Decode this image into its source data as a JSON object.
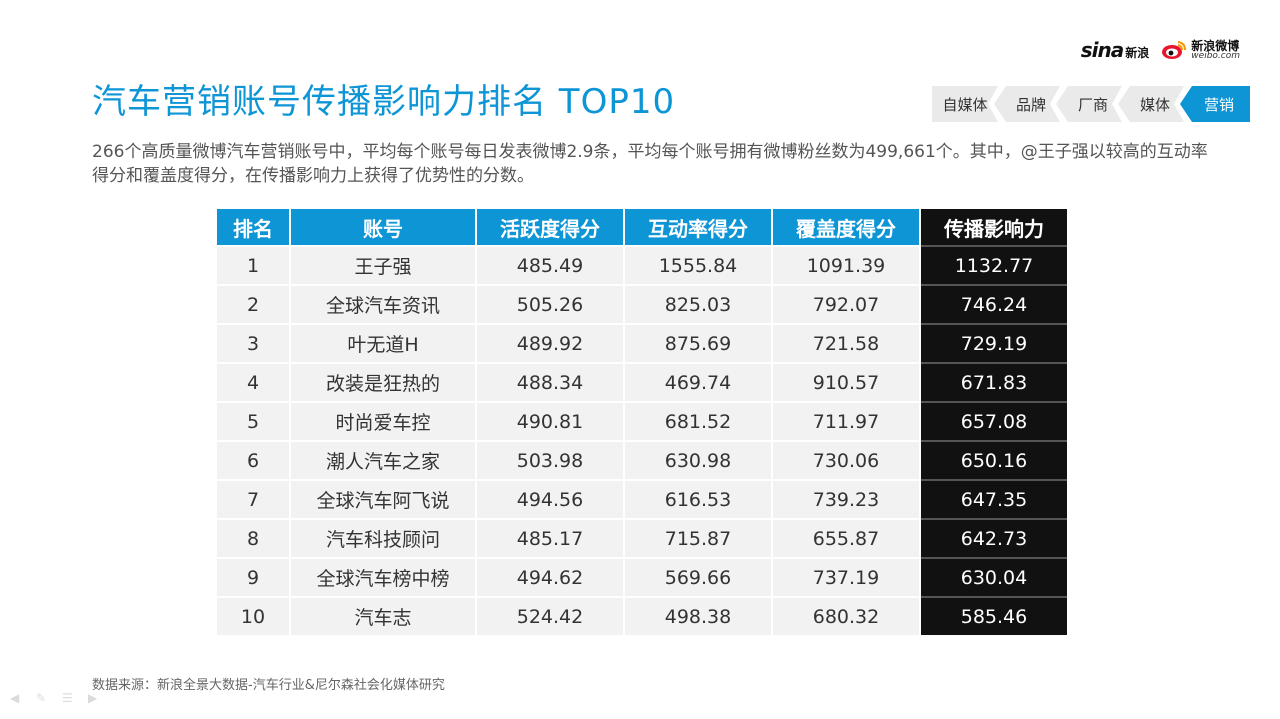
{
  "header": {
    "sina_logo_text": "sina",
    "sina_logo_cn": "新浪",
    "weibo_logo_cn": "新浪微博",
    "weibo_logo_en": "weibo.com",
    "title": "汽车营销账号传播影响力排名 TOP10"
  },
  "tabs": [
    {
      "label": "自媒体",
      "active": false
    },
    {
      "label": "品牌",
      "active": false
    },
    {
      "label": "厂商",
      "active": false
    },
    {
      "label": "媒体",
      "active": false
    },
    {
      "label": "营销",
      "active": true
    }
  ],
  "intro": "266个高质量微博汽车营销账号中，平均每个账号每日发表微博2.9条，平均每个账号拥有微博粉丝数为499,661个。其中，@王子强以较高的互动率得分和覆盖度得分，在传播影响力上获得了优势性的分数。",
  "table": {
    "headers": [
      "排名",
      "账号",
      "活跃度得分",
      "互动率得分",
      "覆盖度得分",
      "传播影响力"
    ],
    "rows": [
      [
        "1",
        "王子强",
        "485.49",
        "1555.84",
        "1091.39",
        "1132.77"
      ],
      [
        "2",
        "全球汽车资讯",
        "505.26",
        "825.03",
        "792.07",
        "746.24"
      ],
      [
        "3",
        "叶无道H",
        "489.92",
        "875.69",
        "721.58",
        "729.19"
      ],
      [
        "4",
        "改装是狂热的",
        "488.34",
        "469.74",
        "910.57",
        "671.83"
      ],
      [
        "5",
        "时尚爱车控",
        "490.81",
        "681.52",
        "711.97",
        "657.08"
      ],
      [
        "6",
        "潮人汽车之家",
        "503.98",
        "630.98",
        "730.06",
        "650.16"
      ],
      [
        "7",
        "全球汽车阿飞说",
        "494.56",
        "616.53",
        "739.23",
        "647.35"
      ],
      [
        "8",
        "汽车科技顾问",
        "485.17",
        "715.87",
        "655.87",
        "642.73"
      ],
      [
        "9",
        "全球汽车榜中榜",
        "494.62",
        "569.66",
        "737.19",
        "630.04"
      ],
      [
        "10",
        "汽车志",
        "524.42",
        "498.38",
        "680.32",
        "585.46"
      ]
    ]
  },
  "source": "数据来源：新浪全景大数据-汽车行业&尼尔森社会化媒体研究",
  "colors": {
    "accent": "#0d95d5",
    "dark": "#111111",
    "row_bg": "#f2f2f2"
  }
}
